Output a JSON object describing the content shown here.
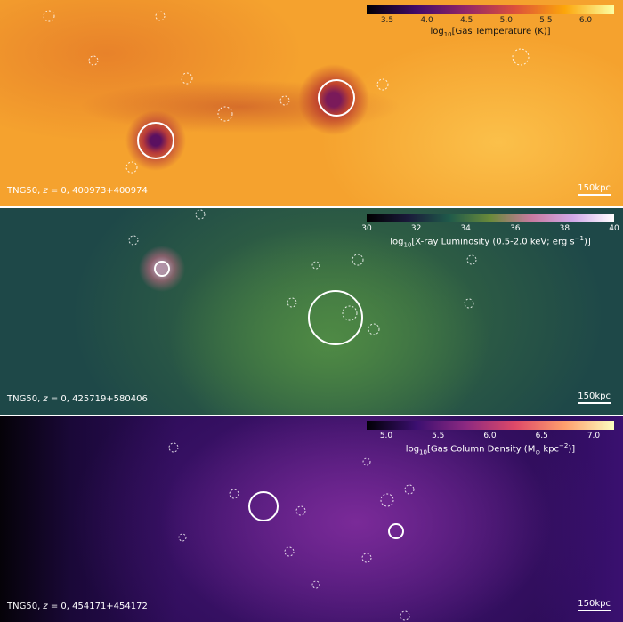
{
  "panels": [
    {
      "colorbar": {
        "ticks": [
          "3.5",
          "4.0",
          "4.5",
          "5.0",
          "5.5",
          "6.0"
        ],
        "label": [
          "log",
          {
            "sub": "10"
          },
          "[Gas Temperature (K)]"
        ]
      },
      "caption": [
        "TNG50, ",
        {
          "i": "z"
        },
        " = 0, 400973+400974"
      ],
      "scale_bar": "150kpc"
    },
    {
      "colorbar": {
        "ticks": [
          "30",
          "32",
          "34",
          "36",
          "38",
          "40"
        ],
        "label": [
          "log",
          {
            "sub": "10"
          },
          "[X-ray Luminosity (0.5-2.0 keV; erg s",
          {
            "sup": "−1"
          },
          ")]"
        ]
      },
      "caption": [
        "TNG50, ",
        {
          "i": "z"
        },
        " = 0, 425719+580406"
      ],
      "scale_bar": "150kpc"
    },
    {
      "colorbar": {
        "ticks": [
          "5.0",
          "5.5",
          "6.0",
          "6.5",
          "7.0"
        ],
        "label": [
          "log",
          {
            "sub": "10"
          },
          "[Gas Column Density (M",
          {
            "sub": "⊙"
          },
          " kpc",
          {
            "sup": "−2"
          },
          ")]"
        ]
      },
      "caption": [
        "TNG50, ",
        {
          "i": "z"
        },
        " = 0, 454171+454172"
      ],
      "scale_bar": "150kpc"
    }
  ]
}
